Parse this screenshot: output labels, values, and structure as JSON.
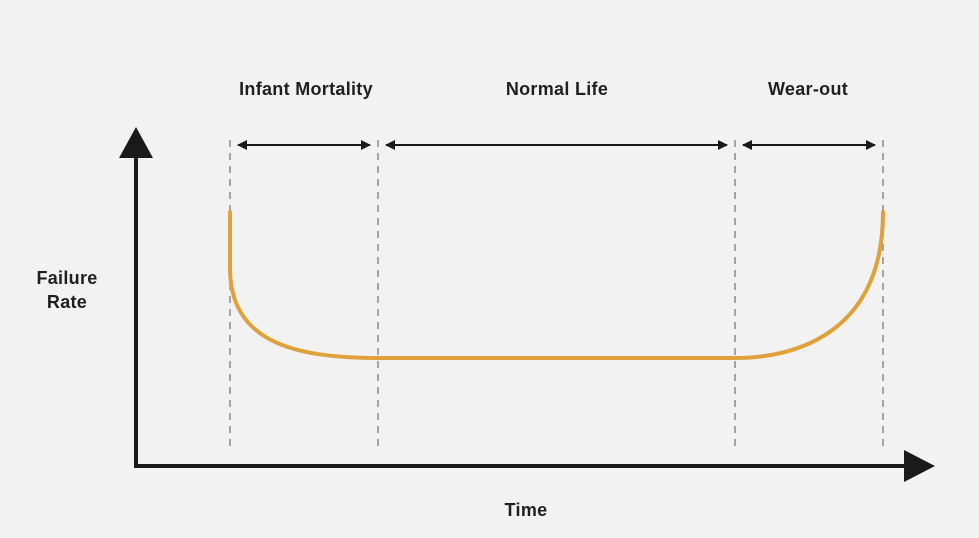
{
  "phases": [
    {
      "label": "Infant Mortality"
    },
    {
      "label": "Normal Life"
    },
    {
      "label": "Wear-out"
    }
  ],
  "axes": {
    "y_label_line1": "Failure",
    "y_label_line2": "Rate",
    "x_label": "Time"
  },
  "colors": {
    "curve": "#e0a13a",
    "axis": "#1a1a1a",
    "divider": "#8a8a8a",
    "background": "#f2f2f2"
  }
}
